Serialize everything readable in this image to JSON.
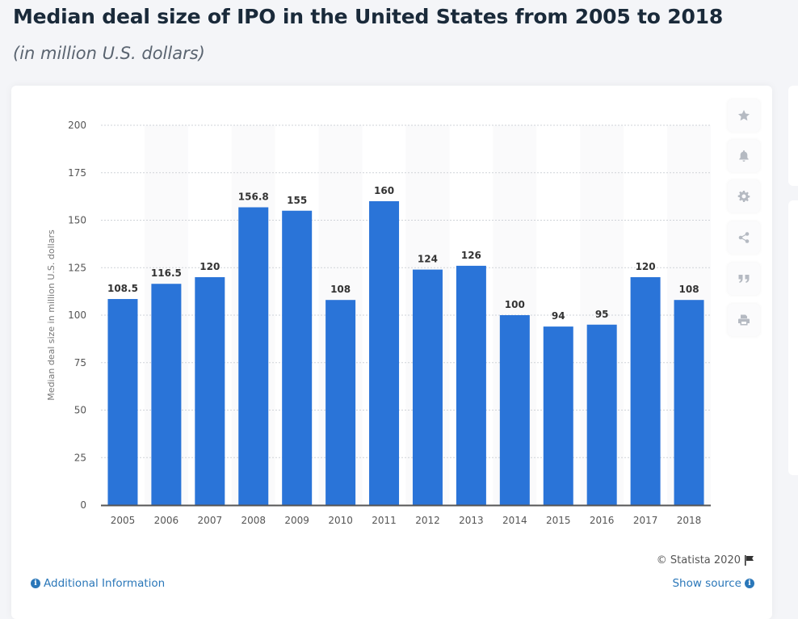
{
  "header": {
    "title": "Median deal size of IPO in the United States from 2005 to 2018",
    "subtitle": "(in million U.S. dollars)"
  },
  "toolbar": [
    {
      "icon": "star-icon",
      "label": "Favorite"
    },
    {
      "icon": "bell-icon",
      "label": "Notification"
    },
    {
      "icon": "gear-icon",
      "label": "Settings"
    },
    {
      "icon": "share-icon",
      "label": "Share"
    },
    {
      "icon": "quote-icon",
      "label": "Cite"
    },
    {
      "icon": "print-icon",
      "label": "Print"
    }
  ],
  "footer": {
    "copyright": "© Statista 2020",
    "additional_info": "Additional Information",
    "show_source": "Show source"
  },
  "colors": {
    "bar": "#2a74d8",
    "title": "#1a2a3a",
    "link": "#2a77b9"
  },
  "chart_data": {
    "type": "bar",
    "title": "Median deal size of IPO in the United States from 2005 to 2018",
    "subtitle": "(in million U.S. dollars)",
    "xlabel": "",
    "ylabel": "Median deal size in million U.S. dollars",
    "categories": [
      "2005",
      "2006",
      "2007",
      "2008",
      "2009",
      "2010",
      "2011",
      "2012",
      "2013",
      "2014",
      "2015",
      "2016",
      "2017",
      "2018"
    ],
    "values": [
      108.5,
      116.5,
      120,
      156.8,
      155,
      108,
      160,
      124,
      126,
      100,
      94,
      95,
      120,
      108
    ],
    "data_labels": [
      "108.5",
      "116.5",
      "120",
      "156.8",
      "155",
      "108",
      "160",
      "124",
      "126",
      "100",
      "94",
      "95",
      "120",
      "108"
    ],
    "ylim": [
      0,
      200
    ],
    "yticks": [
      0,
      25,
      50,
      75,
      100,
      125,
      150,
      175,
      200
    ],
    "grid": true,
    "legend": "none"
  }
}
